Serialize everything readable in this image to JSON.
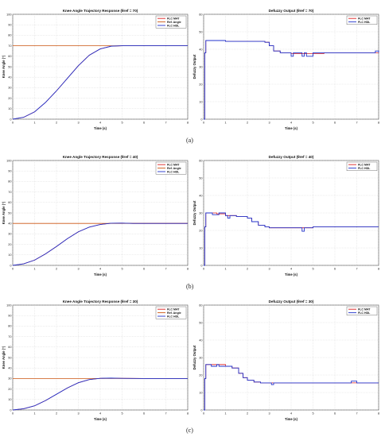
{
  "figure": {
    "row_labels": [
      "(a)",
      "(b)",
      "(c)"
    ]
  },
  "chart_data": [
    {
      "type": "line",
      "title": "Knee Angle Trajectory Response (θref = 70)",
      "xlabel": "Time (s)",
      "ylabel": "Knee Angle (°)",
      "xlim": [
        0,
        8
      ],
      "ylim": [
        0,
        100
      ],
      "xticks": [
        0,
        1,
        2,
        3,
        4,
        5,
        6,
        7,
        8
      ],
      "yticks": [
        0,
        10,
        20,
        30,
        40,
        50,
        60,
        70,
        80,
        90,
        100
      ],
      "grid": true,
      "legend": "top-right",
      "colors": {
        "FLC MAT": "#dd2222",
        "Ref. Angle": "#cc5511",
        "FLC HDL": "#2233cc"
      },
      "series": [
        {
          "name": "FLC MAT",
          "x": [
            0,
            0.5,
            1,
            1.5,
            2,
            2.5,
            3,
            3.5,
            4,
            4.5,
            5,
            6,
            7,
            8
          ],
          "y": [
            0,
            1.8,
            7,
            16,
            27,
            39,
            51,
            61,
            67,
            69.6,
            70,
            70,
            70,
            70
          ]
        },
        {
          "name": "Ref. Angle",
          "x": [
            0,
            8
          ],
          "y": [
            70,
            70
          ]
        },
        {
          "name": "FLC HDL",
          "x": [
            0,
            0.5,
            1,
            1.5,
            2,
            2.5,
            3,
            3.5,
            4,
            4.5,
            5,
            6,
            7,
            8
          ],
          "y": [
            0,
            1.8,
            7,
            16,
            27,
            39,
            51,
            61,
            67,
            69.6,
            70,
            70,
            70,
            70
          ]
        }
      ]
    },
    {
      "type": "line",
      "title": "Defuzzy Output (θref = 70)",
      "xlabel": "Time (s)",
      "ylabel": "Defuzzy Output",
      "xlim": [
        0,
        8
      ],
      "ylim": [
        0,
        60
      ],
      "xticks": [
        0,
        1,
        2,
        3,
        4,
        5,
        6,
        7,
        8
      ],
      "yticks": [
        0,
        10,
        20,
        30,
        40,
        50,
        60
      ],
      "grid": true,
      "legend": "top-right",
      "colors": {
        "FLC MAT": "#dd2222",
        "FLC HDL": "#2233cc"
      },
      "series": [
        {
          "name": "FLC MAT",
          "x": [
            0,
            0.05,
            0.1,
            0.5,
            1,
            1.5,
            2,
            2.5,
            2.8,
            3.0,
            3.2,
            3.5,
            4,
            4.5,
            5,
            5.5,
            6,
            6.5,
            7,
            7.5,
            8
          ],
          "y": [
            0,
            38,
            45,
            45,
            44.5,
            44.5,
            44.5,
            44.5,
            44,
            42,
            39,
            38,
            37.5,
            37.5,
            37.5,
            38,
            38,
            38,
            38,
            38,
            38
          ]
        },
        {
          "name": "FLC HDL",
          "x": [
            0,
            0.05,
            0.1,
            0.5,
            1,
            1.5,
            2,
            2.5,
            2.8,
            3.0,
            3.2,
            3.5,
            3.9,
            4.0,
            4.1,
            4.4,
            4.5,
            4.6,
            4.7,
            5,
            5.5,
            6,
            6.5,
            7,
            7.5,
            7.8,
            7.85,
            8
          ],
          "y": [
            0,
            38,
            45,
            45,
            44.5,
            44.5,
            44.5,
            44.5,
            44,
            42,
            39,
            38,
            38,
            36,
            38,
            38,
            36,
            38,
            36,
            38,
            38,
            38,
            38,
            38,
            38,
            38,
            39,
            38
          ]
        }
      ]
    },
    {
      "type": "line",
      "title": "Knee Angle Trajectory Response (θref = 40)",
      "xlabel": "Time (s)",
      "ylabel": "Knee Angle (°)",
      "xlim": [
        0,
        8
      ],
      "ylim": [
        0,
        100
      ],
      "xticks": [
        0,
        1,
        2,
        3,
        4,
        5,
        6,
        7,
        8
      ],
      "yticks": [
        0,
        10,
        20,
        30,
        40,
        50,
        60,
        70,
        80,
        90,
        100
      ],
      "grid": true,
      "legend": "top-right",
      "colors": {
        "FLC MAT": "#dd2222",
        "Ref. Angle": "#cc5511",
        "FLC HDL": "#2233cc"
      },
      "series": [
        {
          "name": "FLC MAT",
          "x": [
            0,
            0.5,
            1,
            1.5,
            2,
            2.5,
            3,
            3.5,
            4,
            4.5,
            5,
            5.5,
            6,
            7,
            8
          ],
          "y": [
            0,
            1.5,
            5,
            11,
            18,
            25.5,
            32,
            36.5,
            39,
            40.2,
            40.3,
            40,
            40,
            40,
            40
          ]
        },
        {
          "name": "Ref. Angle",
          "x": [
            0,
            8
          ],
          "y": [
            40,
            40
          ]
        },
        {
          "name": "FLC HDL",
          "x": [
            0,
            0.5,
            1,
            1.5,
            2,
            2.5,
            3,
            3.5,
            4,
            4.5,
            5,
            5.5,
            6,
            7,
            8
          ],
          "y": [
            0,
            1.5,
            5,
            11,
            18,
            25.5,
            32,
            36.5,
            39,
            40.2,
            40.3,
            40,
            40,
            40,
            40
          ]
        }
      ]
    },
    {
      "type": "line",
      "title": "Defuzzy Output (θref = 40)",
      "xlabel": "Time (s)",
      "ylabel": "Defuzzy Output",
      "xlim": [
        0,
        8
      ],
      "ylim": [
        0,
        60
      ],
      "xticks": [
        0,
        1,
        2,
        3,
        4,
        5,
        6,
        7,
        8
      ],
      "yticks": [
        0,
        10,
        20,
        30,
        40,
        50,
        60
      ],
      "grid": true,
      "legend": "top-right",
      "colors": {
        "FLC MAT": "#dd2222",
        "FLC HDL": "#2233cc"
      },
      "series": [
        {
          "name": "FLC MAT",
          "x": [
            0,
            0.05,
            0.1,
            0.6,
            1.0,
            1.5,
            1.8,
            2.0,
            2.2,
            2.5,
            2.8,
            3,
            3.5,
            4,
            4.5,
            5,
            5.5,
            6,
            7,
            8
          ],
          "y": [
            0,
            22,
            30,
            29.5,
            28.5,
            28,
            28,
            27,
            25,
            23,
            22,
            21.5,
            21.5,
            21.5,
            21.5,
            22,
            22,
            22,
            22,
            22
          ]
        },
        {
          "name": "FLC HDL",
          "x": [
            0,
            0.05,
            0.1,
            0.3,
            0.4,
            0.6,
            0.7,
            1.0,
            1.1,
            1.2,
            1.5,
            1.8,
            2.0,
            2.2,
            2.5,
            2.8,
            3,
            3.5,
            4,
            4.4,
            4.5,
            4.6,
            5,
            5.5,
            6,
            7,
            8
          ],
          "y": [
            0,
            22,
            30,
            30,
            29,
            29,
            30,
            28.5,
            27,
            28.5,
            28,
            28,
            27,
            25,
            23,
            22,
            21.5,
            21.5,
            21.5,
            21.5,
            19.5,
            21.5,
            22,
            22,
            22,
            22,
            22
          ]
        }
      ]
    },
    {
      "type": "line",
      "title": "Knee Angle Trajectory Response (θref = 30)",
      "xlabel": "Time (s)",
      "ylabel": "Knee Angle (°)",
      "xlim": [
        0,
        8
      ],
      "ylim": [
        0,
        100
      ],
      "xticks": [
        0,
        1,
        2,
        3,
        4,
        5,
        6,
        7,
        8
      ],
      "yticks": [
        0,
        10,
        20,
        30,
        40,
        50,
        60,
        70,
        80,
        90,
        100
      ],
      "grid": true,
      "legend": "top-right",
      "colors": {
        "FLC MAT": "#dd2222",
        "Ref. Angle": "#cc5511",
        "FLC HDL": "#2233cc"
      },
      "series": [
        {
          "name": "FLC MAT",
          "x": [
            0,
            0.5,
            1,
            1.5,
            2,
            2.5,
            3,
            3.5,
            4,
            4.5,
            5,
            6,
            7,
            8
          ],
          "y": [
            0,
            1.2,
            4,
            9,
            15,
            21,
            26,
            29,
            30.2,
            30.4,
            30.2,
            30,
            30,
            30
          ]
        },
        {
          "name": "Ref. Angle",
          "x": [
            0,
            8
          ],
          "y": [
            30,
            30
          ]
        },
        {
          "name": "FLC HDL",
          "x": [
            0,
            0.5,
            1,
            1.5,
            2,
            2.5,
            3,
            3.5,
            4,
            4.5,
            5,
            6,
            7,
            8
          ],
          "y": [
            0,
            1.2,
            4,
            9,
            15,
            21,
            26,
            29,
            30.2,
            30.4,
            30.2,
            30,
            30,
            30
          ]
        }
      ]
    },
    {
      "type": "line",
      "title": "Defuzzy Output (θref = 30)",
      "xlabel": "Time (s)",
      "ylabel": "Defuzzy Output",
      "xlim": [
        0,
        8
      ],
      "ylim": [
        0,
        60
      ],
      "xticks": [
        0,
        1,
        2,
        3,
        4,
        5,
        6,
        7,
        8
      ],
      "yticks": [
        0,
        10,
        20,
        30,
        40,
        50,
        60
      ],
      "grid": true,
      "legend": "top-right",
      "colors": {
        "FLC MAT": "#dd2222",
        "FLC HDL": "#2233cc"
      },
      "series": [
        {
          "name": "FLC MAT",
          "x": [
            0,
            0.05,
            0.1,
            0.6,
            1.0,
            1.3,
            1.6,
            1.8,
            2.0,
            2.3,
            2.6,
            3,
            3.5,
            4,
            5,
            6,
            7,
            8
          ],
          "y": [
            0,
            18,
            26,
            26,
            25,
            24,
            21,
            18.5,
            17,
            16,
            15.5,
            15.5,
            15.5,
            15.5,
            15.5,
            15.5,
            15.5,
            15.5
          ]
        },
        {
          "name": "FLC HDL",
          "x": [
            0,
            0.05,
            0.1,
            0.3,
            0.35,
            0.6,
            0.7,
            1.0,
            1.3,
            1.6,
            1.8,
            2.0,
            2.3,
            2.6,
            3,
            3.1,
            3.2,
            3.5,
            4,
            5,
            6,
            6.7,
            6.75,
            7,
            8
          ],
          "y": [
            0,
            18,
            26,
            26,
            25,
            26,
            25,
            25,
            24,
            21,
            18.5,
            17,
            16,
            15.5,
            15.5,
            14.5,
            15.5,
            15.5,
            15.5,
            15.5,
            15.5,
            15.5,
            16.5,
            15.5,
            15.5
          ]
        }
      ]
    }
  ]
}
